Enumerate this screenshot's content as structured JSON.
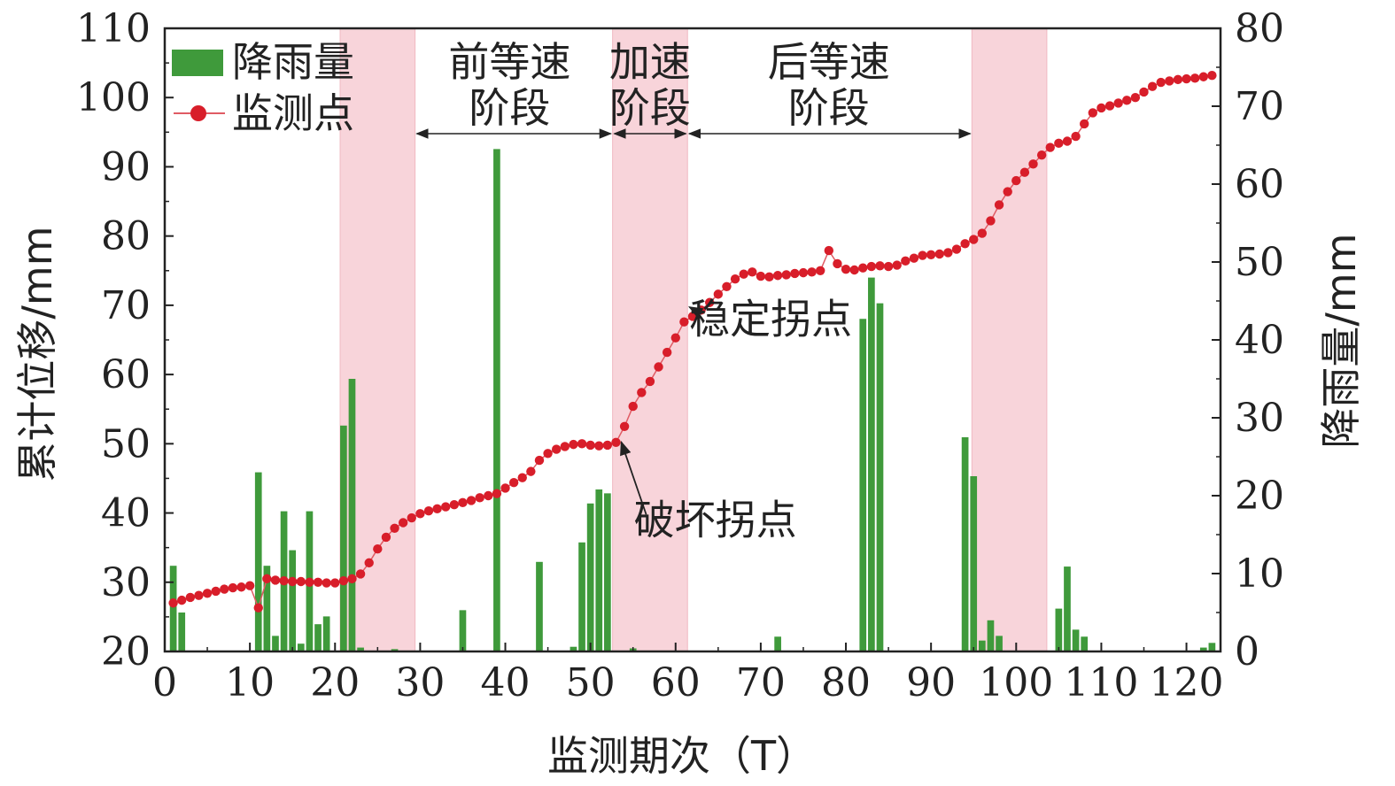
{
  "chart_data": {
    "type": "bar+line",
    "xlabel": "监测期次（T）",
    "ylabel_left": "累计位移/mm",
    "ylabel_right": "降雨量/mm",
    "xlim": [
      0,
      124
    ],
    "ylim_left": [
      20,
      110
    ],
    "ylim_right": [
      0,
      80
    ],
    "x_ticks": [
      0,
      10,
      20,
      30,
      40,
      50,
      60,
      70,
      80,
      90,
      100,
      110,
      120
    ],
    "y_ticks_left": [
      20,
      30,
      40,
      50,
      60,
      70,
      80,
      90,
      100,
      110
    ],
    "y_ticks_right": [
      0,
      10,
      20,
      30,
      40,
      50,
      60,
      70,
      80
    ],
    "legend_position": "top-left",
    "legend": {
      "rain_label": "降雨量",
      "points_label": "监测点"
    },
    "colors": {
      "rain_bar": "#3f9a3b",
      "points": "#d81e2a",
      "line": "#e05b64",
      "shade": "#f8d4da",
      "axis": "#222222"
    },
    "shaded_regions": [
      [
        20.6,
        29.4
      ],
      [
        52.6,
        61.4
      ],
      [
        94.8,
        103.6
      ]
    ],
    "stage_labels": [
      {
        "line1": "前等速",
        "line2": "阶段",
        "x": 40.5,
        "range": [
          29.4,
          52.6
        ]
      },
      {
        "line1": "加速",
        "line2": "阶段",
        "x": 57.0,
        "range": [
          52.6,
          61.4
        ]
      },
      {
        "line1": "后等速",
        "line2": "阶段",
        "x": 78.0,
        "range": [
          61.4,
          94.8
        ]
      }
    ],
    "annotations": [
      {
        "text": "稳定拐点",
        "point_x": 61,
        "point_y": 70.0,
        "text_x": 69.5,
        "text_y": 68.0
      },
      {
        "text": "破坏拐点",
        "point_x": 53,
        "point_y": 50.5,
        "text_x": 63.0,
        "text_y": 39.0
      }
    ],
    "series": [
      {
        "name": "降雨量",
        "type": "bar",
        "axis": "right",
        "x": [
          1,
          2,
          11,
          12,
          13,
          14,
          15,
          16,
          17,
          18,
          19,
          21,
          22,
          23,
          27,
          35,
          39,
          44,
          48,
          49,
          50,
          51,
          52,
          55,
          72,
          82,
          83,
          84,
          94,
          95,
          96,
          97,
          98,
          105,
          106,
          107,
          108,
          122,
          123
        ],
        "values": [
          11,
          5,
          23,
          11,
          2,
          18,
          13,
          1,
          18,
          3.5,
          4.5,
          29,
          35,
          0.5,
          0.3,
          5.3,
          64.5,
          11.5,
          0.6,
          14,
          19,
          20.8,
          20.3,
          0.4,
          1.9,
          42.7,
          48,
          44.7,
          27.5,
          22.5,
          1.4,
          4,
          2,
          5.5,
          10.9,
          2.8,
          1.9,
          0.5,
          1.1
        ]
      },
      {
        "name": "监测点",
        "type": "line",
        "axis": "left",
        "x": [
          1,
          2,
          3,
          4,
          5,
          6,
          7,
          8,
          9,
          10,
          11,
          12,
          13,
          14,
          15,
          16,
          17,
          18,
          19,
          20,
          21,
          22,
          23,
          24,
          25,
          26,
          27,
          28,
          29,
          30,
          31,
          32,
          33,
          34,
          35,
          36,
          37,
          38,
          39,
          40,
          41,
          42,
          43,
          44,
          45,
          46,
          47,
          48,
          49,
          50,
          51,
          52,
          53,
          54,
          55,
          56,
          57,
          58,
          59,
          60,
          61,
          62,
          63,
          64,
          65,
          66,
          67,
          68,
          69,
          70,
          71,
          72,
          73,
          74,
          75,
          76,
          77,
          78,
          79,
          80,
          81,
          82,
          83,
          84,
          85,
          86,
          87,
          88,
          89,
          90,
          91,
          92,
          93,
          94,
          95,
          96,
          97,
          98,
          99,
          100,
          101,
          102,
          103,
          104,
          105,
          106,
          107,
          108,
          109,
          110,
          111,
          112,
          113,
          114,
          115,
          116,
          117,
          118,
          119,
          120,
          121,
          122,
          123
        ],
        "values": [
          27.0,
          27.4,
          27.8,
          28.1,
          28.4,
          28.7,
          29.0,
          29.2,
          29.3,
          29.5,
          26.3,
          30.5,
          30.3,
          30.2,
          30.1,
          30.1,
          30.0,
          30.0,
          29.9,
          29.9,
          30.2,
          30.5,
          31.2,
          32.8,
          34.8,
          36.5,
          37.8,
          38.6,
          39.3,
          39.9,
          40.3,
          40.6,
          40.9,
          41.2,
          41.5,
          41.8,
          42.2,
          42.5,
          42.8,
          43.6,
          44.4,
          45.1,
          46.0,
          47.6,
          48.6,
          49.2,
          49.6,
          49.9,
          50.0,
          49.8,
          49.7,
          49.8,
          50.2,
          52.5,
          55.4,
          57.4,
          59.0,
          61.1,
          63.2,
          65.3,
          67.6,
          68.4,
          69.3,
          70.4,
          71.6,
          72.7,
          73.8,
          74.5,
          74.8,
          74.2,
          74.1,
          74.3,
          74.4,
          74.6,
          74.7,
          74.8,
          75.0,
          77.9,
          76.0,
          75.2,
          75.1,
          75.4,
          75.6,
          75.7,
          75.6,
          75.8,
          76.4,
          76.8,
          77.2,
          77.3,
          77.4,
          77.6,
          78.1,
          78.9,
          79.5,
          80.4,
          82.2,
          84.5,
          86.4,
          88.0,
          89.2,
          90.4,
          91.7,
          92.8,
          93.4,
          93.7,
          94.4,
          96.2,
          97.8,
          98.5,
          98.8,
          99.2,
          99.6,
          100.0,
          100.8,
          101.6,
          102.2,
          102.4,
          102.6,
          102.7,
          102.8,
          103.0,
          103.2
        ]
      }
    ]
  }
}
